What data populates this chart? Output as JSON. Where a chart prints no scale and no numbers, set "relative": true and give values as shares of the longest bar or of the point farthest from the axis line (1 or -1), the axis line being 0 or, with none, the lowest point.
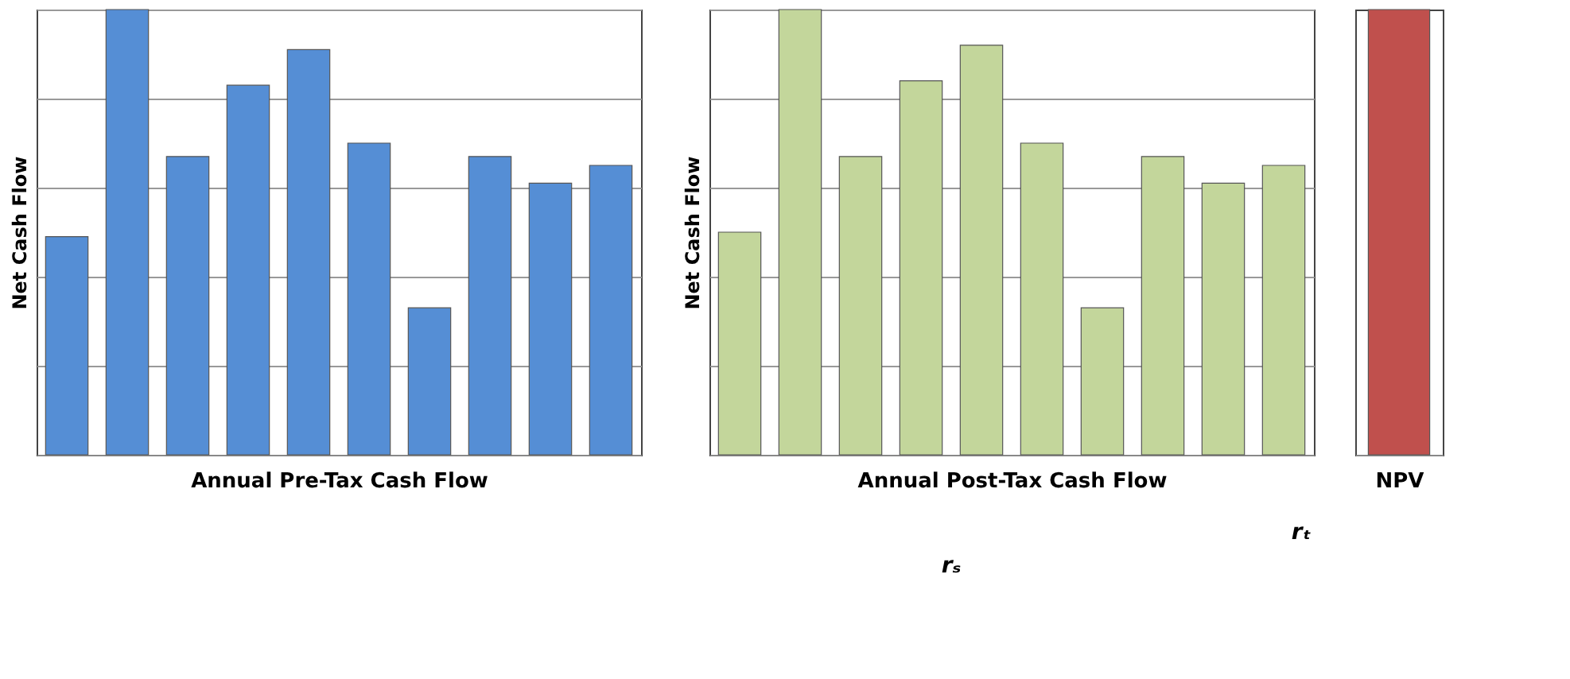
{
  "chart_data": [
    {
      "type": "bar",
      "relative": true,
      "xlabel": "Annual Pre-Tax Cash Flow",
      "ylabel": "Net Cash Flow",
      "categories": [
        null,
        null,
        null,
        null,
        null,
        null,
        null,
        null,
        null,
        null
      ],
      "values": [
        0.49,
        1,
        0.67,
        0.83,
        0.91,
        0.7,
        0.33,
        0.67,
        0.61,
        0.65
      ],
      "color": "#558ed5",
      "grid": "y"
    },
    {
      "type": "bar",
      "relative": true,
      "xlabel": "Annual Post-Tax Cash Flow",
      "ylabel": "Net Cash Flow",
      "categories": [
        null,
        null,
        null,
        null,
        null,
        null,
        null,
        null,
        null,
        null
      ],
      "values": [
        0.5,
        1,
        0.67,
        0.84,
        0.92,
        0.7,
        0.33,
        0.67,
        0.61,
        0.65
      ],
      "color": "#c3d69b",
      "grid": "y"
    },
    {
      "type": "bar",
      "relative": true,
      "xlabel": "NPV",
      "categories": [
        null
      ],
      "values": [
        1
      ],
      "color": "#c0504d",
      "annotations": [
        "rₛ",
        "rₜ"
      ]
    }
  ]
}
